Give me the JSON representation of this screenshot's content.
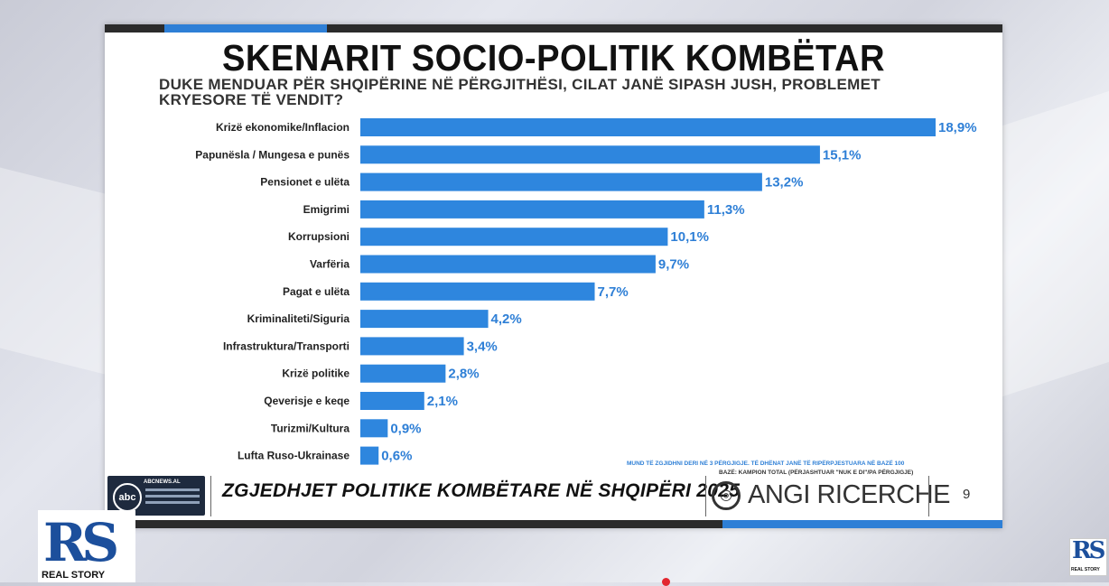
{
  "title": "SKENARIT SOCIO-POLITIK KOMBËTAR",
  "subtitle": "DUKE MENDUAR PËR SHQIPËRINE NË PËRGJITHËSI, CILAT JANË SIPASH JUSH, PROBLEMET KRYESORE TË VENDIT?",
  "chart_data": {
    "type": "bar",
    "orientation": "horizontal",
    "title": "SKENARIT SOCIO-POLITIK KOMBËTAR",
    "categories": [
      "Krizë ekonomike/Inflacion",
      "Papunësla / Mungesa e punës",
      "Pensionet e ulëta",
      "Emigrimi",
      "Korrupsioni",
      "Varfëria",
      "Pagat e ulëta",
      "Kriminaliteti/Siguria",
      "Infrastruktura/Transporti",
      "Krizë politike",
      "Qeverisje e keqe",
      "Turizmi/Kultura",
      "Lufta Ruso-Ukrainase"
    ],
    "values": [
      18.9,
      15.1,
      13.2,
      11.3,
      10.1,
      9.7,
      7.7,
      4.2,
      3.4,
      2.8,
      2.1,
      0.9,
      0.6
    ],
    "value_labels": [
      "18,9%",
      "15,1%",
      "13,2%",
      "11,3%",
      "10,1%",
      "9,7%",
      "7,7%",
      "4,2%",
      "3,4%",
      "2,8%",
      "2,1%",
      "0,9%",
      "0,6%"
    ],
    "xlim": [
      0,
      18.9
    ],
    "bar_color": "#2e86de",
    "label_color": "#2e7fd6"
  },
  "footer": {
    "notes_line1": "MUND TË ZGJIDHNI DERI NË 3 PËRGJIGJE. TË DHËNAT JANË TË RIPËRPJESTUARA NË BAZË 100",
    "notes_line2": "BAZË: KAMPION TOTAL (PËRJASHTUAR \"NUK E DI\"/PA PËRGJIGJE)",
    "event_title": "ZGJEDHJET POLITIKE KOMBËTARE NË SHQIPËRI 2025",
    "pollster": "ANGI RICERCHE",
    "page_number": "9",
    "abc_logo": "abc",
    "abc_site": "ABCNEWS.AL"
  },
  "watermark": {
    "logo": "RS",
    "name": "REAL STORY"
  },
  "colors": {
    "accent": "#2e7fd6",
    "bar": "#2e86de",
    "brand_rs": "#1c4f9c"
  }
}
